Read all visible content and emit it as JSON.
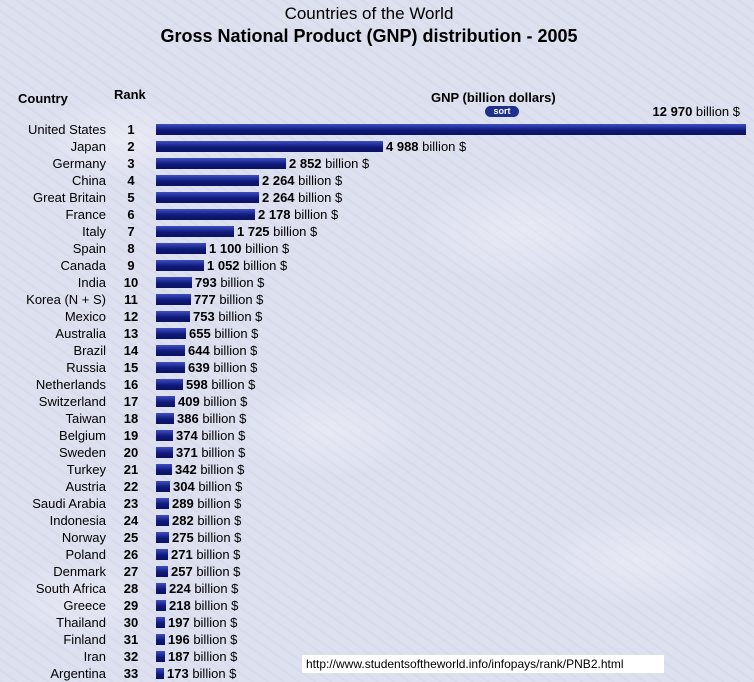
{
  "header": {
    "title": "Countries of the World",
    "subtitle": "Gross National Product (GNP) distribution - 2005"
  },
  "columns": {
    "country": "Country",
    "rank": "Rank",
    "gnp": "GNP (billion dollars)",
    "sort_label": "sort"
  },
  "unit_suffix": "billion $",
  "source_url": "http://www.studentsoftheworld.info/infopays/rank/PNB2.html",
  "colors": {
    "bar": "#101a7a",
    "sort_button": "#1f2f8c"
  },
  "chart_data": {
    "type": "bar",
    "orientation": "horizontal",
    "title": "Gross National Product (GNP) distribution - 2005",
    "xlabel": "GNP (billion dollars)",
    "ylabel": "Country",
    "xlim": [
      0,
      12970
    ],
    "grid": false,
    "rows": [
      {
        "country": "United States",
        "rank": "1",
        "value": 12970,
        "label": "12 970"
      },
      {
        "country": "Japan",
        "rank": "2",
        "value": 4988,
        "label": "4 988"
      },
      {
        "country": "Germany",
        "rank": "3",
        "value": 2852,
        "label": "2 852"
      },
      {
        "country": "China",
        "rank": "4",
        "value": 2264,
        "label": "2 264"
      },
      {
        "country": "Great Britain",
        "rank": "5",
        "value": 2264,
        "label": "2 264"
      },
      {
        "country": "France",
        "rank": "6",
        "value": 2178,
        "label": "2 178"
      },
      {
        "country": "Italy",
        "rank": "7",
        "value": 1725,
        "label": "1 725"
      },
      {
        "country": "Spain",
        "rank": "8",
        "value": 1100,
        "label": "1 100"
      },
      {
        "country": "Canada",
        "rank": "9",
        "value": 1052,
        "label": "1 052"
      },
      {
        "country": "India",
        "rank": "10",
        "value": 793,
        "label": "793"
      },
      {
        "country": "Korea (N + S)",
        "rank": "11",
        "value": 777,
        "label": "777"
      },
      {
        "country": "Mexico",
        "rank": "12",
        "value": 753,
        "label": "753"
      },
      {
        "country": "Australia",
        "rank": "13",
        "value": 655,
        "label": "655"
      },
      {
        "country": "Brazil",
        "rank": "14",
        "value": 644,
        "label": "644"
      },
      {
        "country": "Russia",
        "rank": "15",
        "value": 639,
        "label": "639"
      },
      {
        "country": "Netherlands",
        "rank": "16",
        "value": 598,
        "label": "598"
      },
      {
        "country": "Switzerland",
        "rank": "17",
        "value": 409,
        "label": "409"
      },
      {
        "country": "Taiwan",
        "rank": "18",
        "value": 386,
        "label": "386"
      },
      {
        "country": "Belgium",
        "rank": "19",
        "value": 374,
        "label": "374"
      },
      {
        "country": "Sweden",
        "rank": "20",
        "value": 371,
        "label": "371"
      },
      {
        "country": "Turkey",
        "rank": "21",
        "value": 342,
        "label": "342"
      },
      {
        "country": "Austria",
        "rank": "22",
        "value": 304,
        "label": "304"
      },
      {
        "country": "Saudi Arabia",
        "rank": "23",
        "value": 289,
        "label": "289"
      },
      {
        "country": "Indonesia",
        "rank": "24",
        "value": 282,
        "label": "282"
      },
      {
        "country": "Norway",
        "rank": "25",
        "value": 275,
        "label": "275"
      },
      {
        "country": "Poland",
        "rank": "26",
        "value": 271,
        "label": "271"
      },
      {
        "country": "Denmark",
        "rank": "27",
        "value": 257,
        "label": "257"
      },
      {
        "country": "South Africa",
        "rank": "28",
        "value": 224,
        "label": "224"
      },
      {
        "country": "Greece",
        "rank": "29",
        "value": 218,
        "label": "218"
      },
      {
        "country": "Thailand",
        "rank": "30",
        "value": 197,
        "label": "197"
      },
      {
        "country": "Finland",
        "rank": "31",
        "value": 196,
        "label": "196"
      },
      {
        "country": "Iran",
        "rank": "32",
        "value": 187,
        "label": "187"
      },
      {
        "country": "Argentina",
        "rank": "33",
        "value": 173,
        "label": "173"
      }
    ]
  }
}
